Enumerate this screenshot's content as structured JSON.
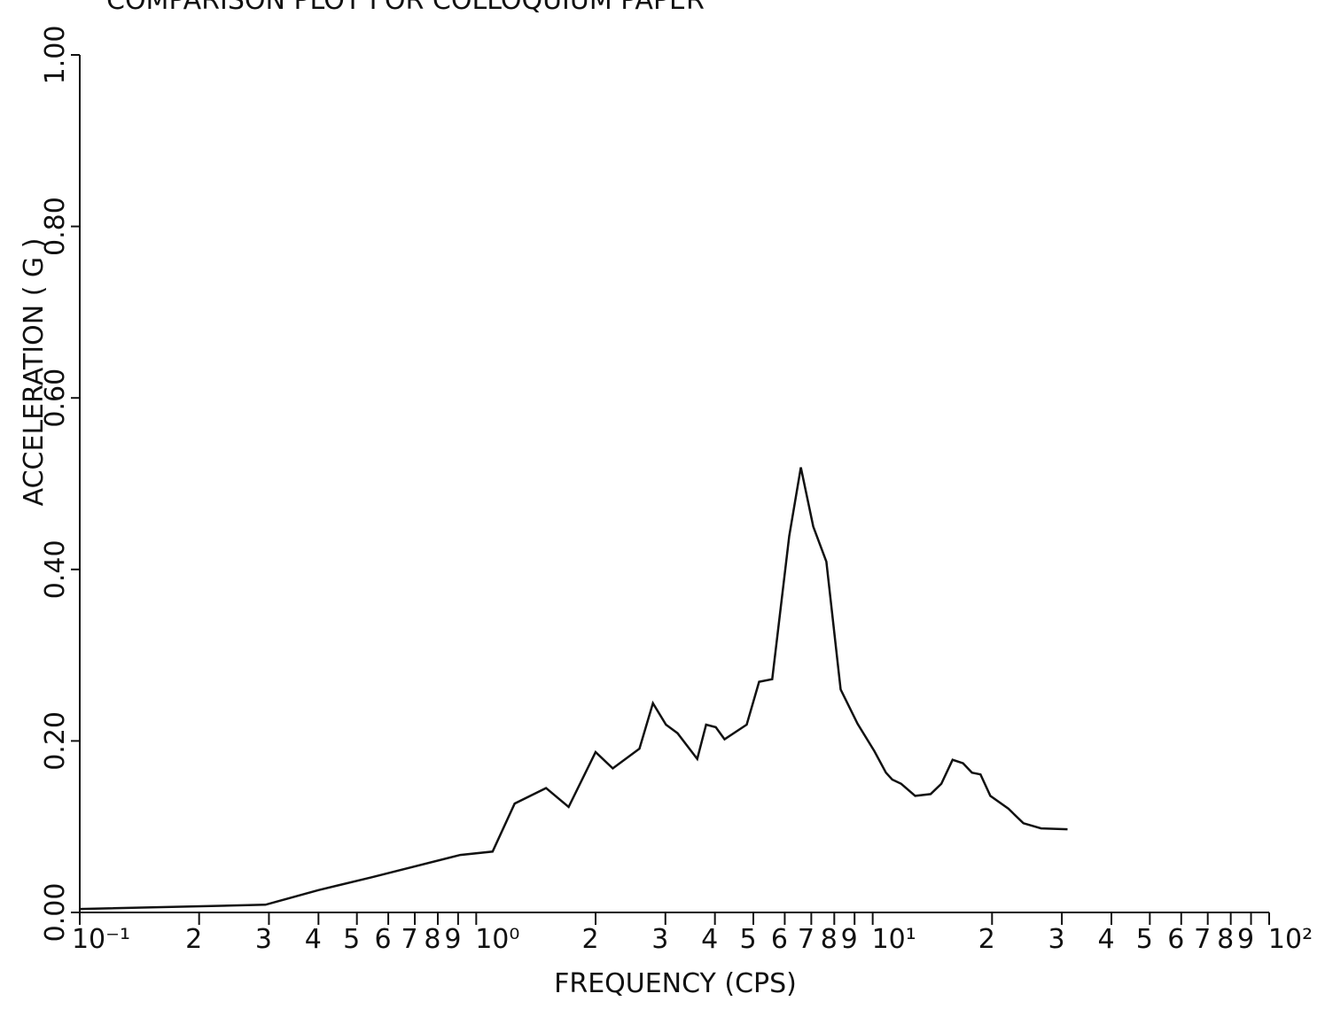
{
  "chart_data": {
    "type": "line",
    "title": "COMPARISON PLOT FOR COLLOQUIUM PAPER",
    "x_label": "FREQUENCY (CPS)",
    "y_label": "ACCELERATION ( G )",
    "x_scale": "log",
    "xlim": [
      0.1,
      100
    ],
    "ylim": [
      0,
      1
    ],
    "xticks": [
      {
        "value": 0.1,
        "label": "10⁻¹"
      },
      {
        "value": 0.2,
        "label": "2"
      },
      {
        "value": 0.3,
        "label": "3"
      },
      {
        "value": 0.4,
        "label": "4"
      },
      {
        "value": 0.5,
        "label": "5"
      },
      {
        "value": 0.6,
        "label": "6"
      },
      {
        "value": 0.7,
        "label": "7"
      },
      {
        "value": 0.8,
        "label": "8"
      },
      {
        "value": 0.9,
        "label": "9"
      },
      {
        "value": 1,
        "label": "10⁰"
      },
      {
        "value": 2,
        "label": "2"
      },
      {
        "value": 3,
        "label": "3"
      },
      {
        "value": 4,
        "label": "4"
      },
      {
        "value": 5,
        "label": "5"
      },
      {
        "value": 6,
        "label": "6"
      },
      {
        "value": 7,
        "label": "7"
      },
      {
        "value": 8,
        "label": "8"
      },
      {
        "value": 9,
        "label": "9"
      },
      {
        "value": 10,
        "label": "10¹"
      },
      {
        "value": 20,
        "label": "2"
      },
      {
        "value": 30,
        "label": "3"
      },
      {
        "value": 40,
        "label": "4"
      },
      {
        "value": 50,
        "label": "5"
      },
      {
        "value": 60,
        "label": "6"
      },
      {
        "value": 70,
        "label": "7"
      },
      {
        "value": 80,
        "label": "8"
      },
      {
        "value": 90,
        "label": "9"
      },
      {
        "value": 100,
        "label": "10²"
      }
    ],
    "yticks": [
      {
        "value": 0,
        "label": "0.00"
      },
      {
        "value": 0.2,
        "label": "0.20"
      },
      {
        "value": 0.4,
        "label": "0.40"
      },
      {
        "value": 0.6,
        "label": "0.60"
      },
      {
        "value": 0.8,
        "label": "0.80"
      },
      {
        "value": 1,
        "label": "1.00"
      }
    ],
    "color": "#111111",
    "x": [
      0.1,
      0.294,
      0.4,
      0.545,
      0.912,
      1.1,
      1.25,
      1.5,
      1.71,
      2.0,
      2.21,
      2.58,
      2.79,
      3.01,
      3.22,
      3.61,
      3.8,
      4.02,
      4.23,
      4.81,
      5.17,
      5.58,
      6.16,
      6.59,
      7.08,
      7.64,
      8.3,
      9.16,
      10.1,
      10.8,
      11.2,
      11.8,
      12.8,
      14.0,
      14.9,
      15.9,
      16.9,
      17.8,
      18.7,
      19.8,
      22.0,
      24.0,
      26.6,
      31.0
    ],
    "values": [
      0.004,
      0.009,
      0.026,
      0.041,
      0.067,
      0.071,
      0.127,
      0.145,
      0.123,
      0.187,
      0.168,
      0.191,
      0.244,
      0.219,
      0.209,
      0.179,
      0.219,
      0.216,
      0.202,
      0.219,
      0.269,
      0.272,
      0.439,
      0.519,
      0.45,
      0.409,
      0.26,
      0.22,
      0.188,
      0.163,
      0.155,
      0.15,
      0.136,
      0.138,
      0.15,
      0.178,
      0.174,
      0.163,
      0.161,
      0.136,
      0.121,
      0.104,
      0.098,
      0.097
    ]
  }
}
